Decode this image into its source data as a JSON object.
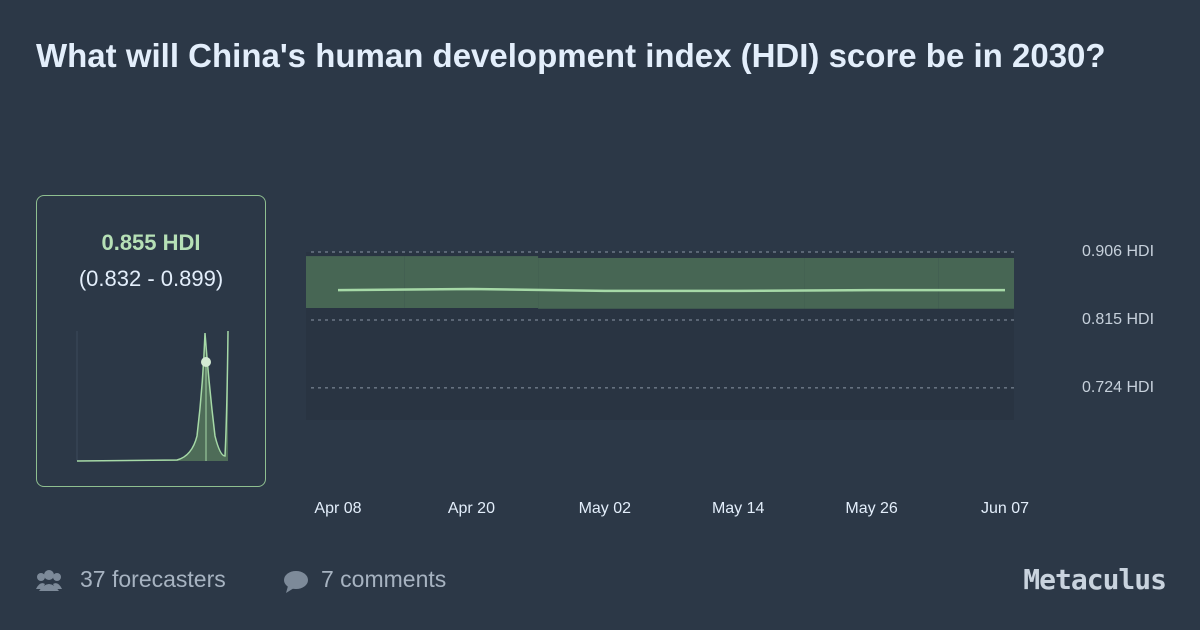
{
  "question": {
    "title": "What will China's human development index (HDI) score be in 2030?"
  },
  "summary": {
    "median": "0.855 HDI",
    "range": "(0.832 - 0.899)"
  },
  "chart_data": {
    "type": "line",
    "categories": [
      "Apr 08",
      "Apr 20",
      "May 02",
      "May 14",
      "May 26",
      "Jun 07"
    ],
    "values": [
      0.855,
      0.8565,
      0.854,
      0.854,
      0.855,
      0.855
    ],
    "lower": [
      0.831,
      0.831,
      0.83,
      0.83,
      0.83,
      0.83
    ],
    "upper": [
      0.9005,
      0.9005,
      0.898,
      0.898,
      0.898,
      0.898
    ],
    "color": "#a6d9a7",
    "ylim": [
      0.681,
      0.906
    ],
    "yticks": [
      {
        "value": 0.906,
        "label": "0.906 HDI"
      },
      {
        "value": 0.815,
        "label": "0.815 HDI"
      },
      {
        "value": 0.724,
        "label": "0.724 HDI"
      }
    ],
    "grid": true
  },
  "footer": {
    "forecasters": "37 forecasters",
    "comments": "7 comments",
    "brand": "Metaculus"
  }
}
